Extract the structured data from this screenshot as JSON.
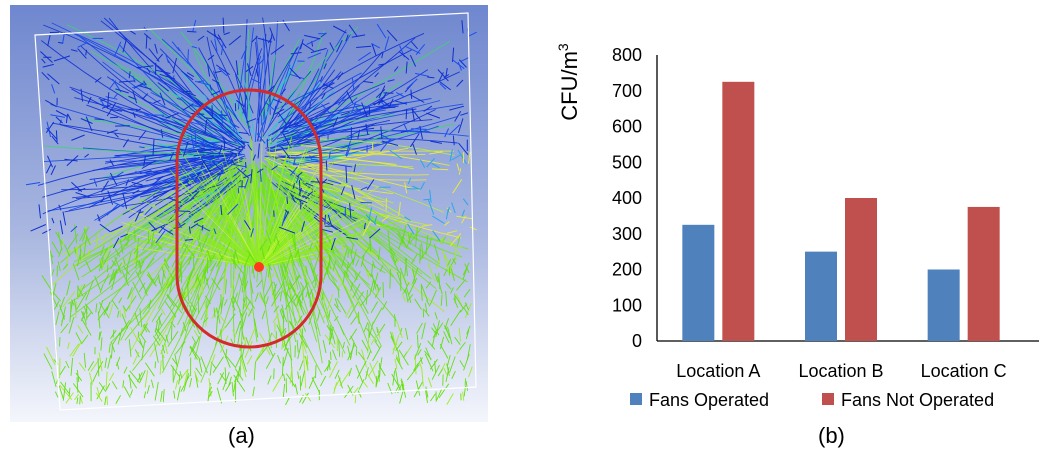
{
  "panel_a": {
    "caption": "(a)"
  },
  "panel_b": {
    "caption": "(b)"
  },
  "chart_data": {
    "type": "bar",
    "categories": [
      "Location A",
      "Location B",
      "Location C"
    ],
    "series": [
      {
        "name": "Fans Operated",
        "values": [
          325,
          250,
          200
        ],
        "color": "#4f81bd"
      },
      {
        "name": "Fans Not Operated",
        "values": [
          725,
          400,
          375
        ],
        "color": "#c0504d"
      }
    ],
    "ylabel_base": "CFU/m",
    "ylabel_sup": "3",
    "ylim": [
      0,
      800
    ],
    "yticks": [
      "0",
      "100",
      "200",
      "300",
      "400",
      "500",
      "600",
      "700",
      "800"
    ],
    "grid": false,
    "legend_position": "bottom"
  }
}
